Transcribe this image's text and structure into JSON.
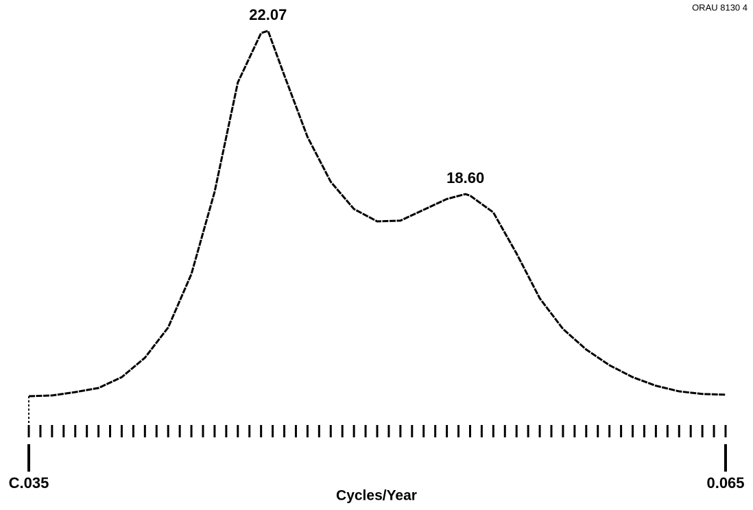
{
  "chart_data": {
    "type": "line",
    "figure_id": "ORAU 8130 4",
    "xlabel": "Cycles/Year",
    "xlim": [
      0.035,
      0.065
    ],
    "ylim": [
      0,
      100
    ],
    "xticks": [
      {
        "value": 0.035,
        "label": "C.035"
      },
      0.065
    ],
    "minor_xticks": [
      0.035,
      0.0355,
      0.036,
      0.0365,
      0.037,
      0.0375,
      0.038,
      0.0385,
      0.039,
      0.0395,
      0.04,
      0.0405,
      0.041,
      0.0415,
      0.042,
      0.0425,
      0.043,
      0.0435,
      0.044,
      0.0445,
      0.045,
      0.0455,
      0.046,
      0.0465,
      0.047,
      0.0475,
      0.048,
      0.0485,
      0.049,
      0.0495,
      0.05,
      0.0505,
      0.051,
      0.0515,
      0.052,
      0.0525,
      0.053,
      0.0535,
      0.054,
      0.0545,
      0.055,
      0.0555,
      0.056,
      0.0565,
      0.057,
      0.0575,
      0.058,
      0.0585,
      0.059,
      0.0595,
      0.06,
      0.0605,
      0.061,
      0.0615,
      0.062,
      0.0625,
      0.063,
      0.0635,
      0.064,
      0.0645,
      0.065
    ],
    "color": "#000000",
    "x": [
      0.035,
      0.036,
      0.037,
      0.038,
      0.039,
      0.04,
      0.041,
      0.042,
      0.043,
      0.044,
      0.045,
      0.0453,
      0.046,
      0.047,
      0.048,
      0.049,
      0.05,
      0.051,
      0.052,
      0.053,
      0.0538,
      0.054,
      0.055,
      0.056,
      0.057,
      0.058,
      0.059,
      0.06,
      0.061,
      0.062,
      0.063,
      0.064,
      0.065
    ],
    "values": [
      2.2,
      2.4,
      3.3,
      4.4,
      7.3,
      12.5,
      20.6,
      34.9,
      56.9,
      86.2,
      99.4,
      100,
      88.1,
      71.6,
      59.6,
      52.3,
      49.0,
      49.2,
      52.1,
      55.0,
      56.3,
      55.9,
      51.4,
      40.4,
      28.4,
      20.2,
      14.7,
      10.5,
      7.3,
      5.0,
      3.5,
      2.8,
      2.6
    ],
    "annotations": [
      {
        "text": "22.07",
        "x": 0.0453,
        "y": 100
      },
      {
        "text": "18.60",
        "x": 0.0538,
        "y": 56.3
      }
    ]
  }
}
